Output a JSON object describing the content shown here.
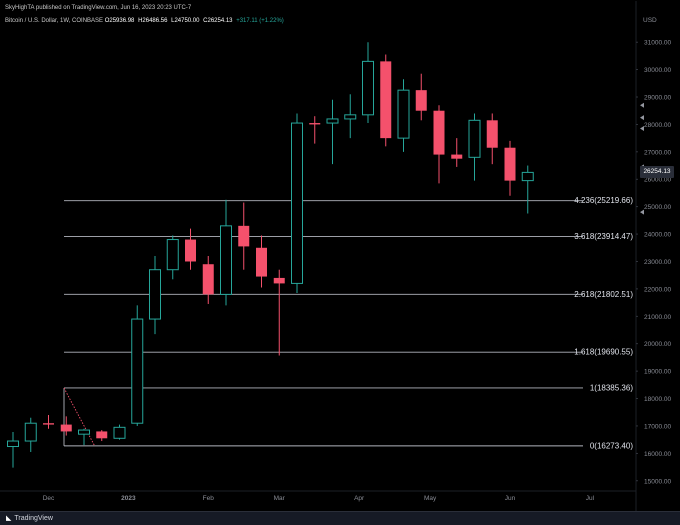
{
  "header": {
    "publish_line": "SkyHighTA published on TradingView.com, Jun 16, 2023 20:23 UTC-7",
    "ticker": "Bitcoin / U.S. Dollar, 1W, COINBASE",
    "ohlc": {
      "open": "O25936.98",
      "high": "H26486.56",
      "low": "L24750.00",
      "close": "C26254.13",
      "change": "+317.11 (+1.22%)"
    }
  },
  "footer": {
    "logo_text": "TradingView"
  },
  "price_badge": "26254.13",
  "colors": {
    "up": "#26a69a",
    "down": "#f4516c",
    "level": "#b2b5be",
    "axis_text": "#8a8d96",
    "background": "#000000"
  },
  "chart_data": {
    "type": "candlestick",
    "currency": "USD",
    "timeframe": "1W",
    "ylim": [
      14700,
      31700
    ],
    "yticks": [
      15000,
      16000,
      17000,
      18000,
      19000,
      20000,
      21000,
      22000,
      23000,
      24000,
      25000,
      26000,
      27000,
      28000,
      29000,
      30000,
      31000
    ],
    "ytick_labels": [
      "15000.00",
      "16000.00",
      "17000.00",
      "18000.00",
      "19000.00",
      "20000.00",
      "21000.00",
      "22000.00",
      "23000.00",
      "24000.00",
      "25000.00",
      "26000.00",
      "27000.00",
      "28000.00",
      "29000.00",
      "30000.00",
      "31000.00"
    ],
    "x_labels": [
      {
        "label": "Dec",
        "week": 2
      },
      {
        "label": "2023",
        "week": 6.5
      },
      {
        "label": "Feb",
        "week": 11
      },
      {
        "label": "Mar",
        "week": 15
      },
      {
        "label": "Apr",
        "week": 19.5
      },
      {
        "label": "May",
        "week": 23.5
      },
      {
        "label": "Jun",
        "week": 28
      },
      {
        "label": "Jul",
        "week": 32.5
      }
    ],
    "candles": [
      {
        "week": 0,
        "open": 16250,
        "high": 16780,
        "low": 15480,
        "close": 16450
      },
      {
        "week": 1,
        "open": 16450,
        "high": 17300,
        "low": 16050,
        "close": 17100
      },
      {
        "week": 2,
        "open": 17100,
        "high": 17400,
        "low": 16900,
        "close": 17050
      },
      {
        "week": 3,
        "open": 17050,
        "high": 17350,
        "low": 16650,
        "close": 16800
      },
      {
        "week": 4,
        "open": 16700,
        "high": 16900,
        "low": 16300,
        "close": 16850
      },
      {
        "week": 5,
        "open": 16800,
        "high": 16850,
        "low": 16450,
        "close": 16550
      },
      {
        "week": 6,
        "open": 16550,
        "high": 17050,
        "low": 16500,
        "close": 16950
      },
      {
        "week": 7,
        "open": 17100,
        "high": 21400,
        "low": 17000,
        "close": 20900
      },
      {
        "week": 8,
        "open": 20900,
        "high": 23200,
        "low": 20350,
        "close": 22700
      },
      {
        "week": 9,
        "open": 22700,
        "high": 23950,
        "low": 22350,
        "close": 23800
      },
      {
        "week": 10,
        "open": 23800,
        "high": 24200,
        "low": 22700,
        "close": 23000
      },
      {
        "week": 11,
        "open": 22900,
        "high": 23200,
        "low": 21450,
        "close": 21800
      },
      {
        "week": 12,
        "open": 21800,
        "high": 25250,
        "low": 21400,
        "close": 24300
      },
      {
        "week": 13,
        "open": 24300,
        "high": 25150,
        "low": 22700,
        "close": 23550
      },
      {
        "week": 14,
        "open": 23500,
        "high": 23950,
        "low": 22050,
        "close": 22450
      },
      {
        "week": 15,
        "open": 22400,
        "high": 22700,
        "low": 19570,
        "close": 22200
      },
      {
        "week": 16,
        "open": 22200,
        "high": 28400,
        "low": 21850,
        "close": 28050
      },
      {
        "week": 17,
        "open": 28050,
        "high": 28300,
        "low": 27300,
        "close": 28000
      },
      {
        "week": 18,
        "open": 28050,
        "high": 28900,
        "low": 26550,
        "close": 28200
      },
      {
        "week": 19,
        "open": 28200,
        "high": 29100,
        "low": 27500,
        "close": 28350
      },
      {
        "week": 20,
        "open": 28350,
        "high": 31000,
        "low": 28050,
        "close": 30300
      },
      {
        "week": 21,
        "open": 30300,
        "high": 30550,
        "low": 27200,
        "close": 27500
      },
      {
        "week": 22,
        "open": 27500,
        "high": 29650,
        "low": 27000,
        "close": 29250
      },
      {
        "week": 23,
        "open": 29250,
        "high": 29850,
        "low": 28150,
        "close": 28500
      },
      {
        "week": 24,
        "open": 28500,
        "high": 28700,
        "low": 25850,
        "close": 26900
      },
      {
        "week": 25,
        "open": 26900,
        "high": 27500,
        "low": 26450,
        "close": 26750
      },
      {
        "week": 26,
        "open": 26800,
        "high": 28400,
        "low": 25950,
        "close": 28150
      },
      {
        "week": 27,
        "open": 28150,
        "high": 28400,
        "low": 26550,
        "close": 27150
      },
      {
        "week": 28,
        "open": 27150,
        "high": 27400,
        "low": 25400,
        "close": 25950
      },
      {
        "week": 29,
        "open": 25950,
        "high": 26500,
        "low": 24750,
        "close": 26250
      }
    ],
    "fib_levels": [
      {
        "ratio": "4.236",
        "price": 25219.66,
        "label": "4.236(25219.66)"
      },
      {
        "ratio": "3.618",
        "price": 23914.47,
        "label": "3.618(23914.47)"
      },
      {
        "ratio": "2.618",
        "price": 21802.51,
        "label": "2.618(21802.51)"
      },
      {
        "ratio": "1.618",
        "price": 19690.55,
        "label": "1.618(19690.55)"
      },
      {
        "ratio": "1",
        "price": 18385.36,
        "label": "1(18385.36)"
      },
      {
        "ratio": "0",
        "price": 16273.4,
        "label": "0(16273.40)"
      }
    ],
    "fib_anchor": {
      "from_week": 3,
      "high": 18385.36,
      "low": 16273.4,
      "to_week": 4.6
    },
    "last_price": 26254.13
  }
}
